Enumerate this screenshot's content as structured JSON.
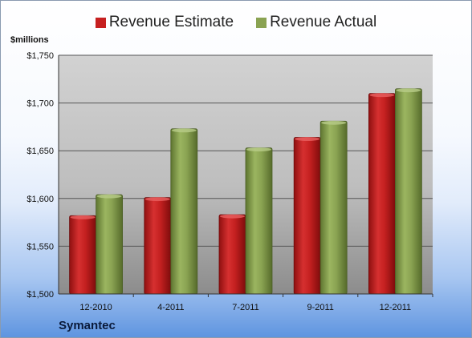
{
  "legend": {
    "estimate_label": "Revenue Estimate",
    "actual_label": "Revenue Actual"
  },
  "unit_label": "$millions",
  "company_label": "Symantec",
  "colors": {
    "estimate": "#c62020",
    "actual": "#8aa352",
    "plot_background": "#c9c9c9"
  },
  "chart_data": {
    "type": "bar",
    "title": "",
    "xlabel": "",
    "ylabel": "$millions",
    "categories": [
      "12-2010",
      "4-2011",
      "7-2011",
      "9-2011",
      "12-2011"
    ],
    "series": [
      {
        "name": "Revenue Estimate",
        "values": [
          1582,
          1601,
          1583,
          1664,
          1710
        ]
      },
      {
        "name": "Revenue Actual",
        "values": [
          1604,
          1673,
          1653,
          1681,
          1715
        ]
      }
    ],
    "ylim": [
      1500,
      1750
    ],
    "yticks": [
      1500,
      1550,
      1600,
      1650,
      1700,
      1750
    ],
    "ytick_labels": [
      "$1,500",
      "$1,550",
      "$1,600",
      "$1,650",
      "$1,700",
      "$1,750"
    ],
    "grid": true,
    "legend_position": "top"
  }
}
